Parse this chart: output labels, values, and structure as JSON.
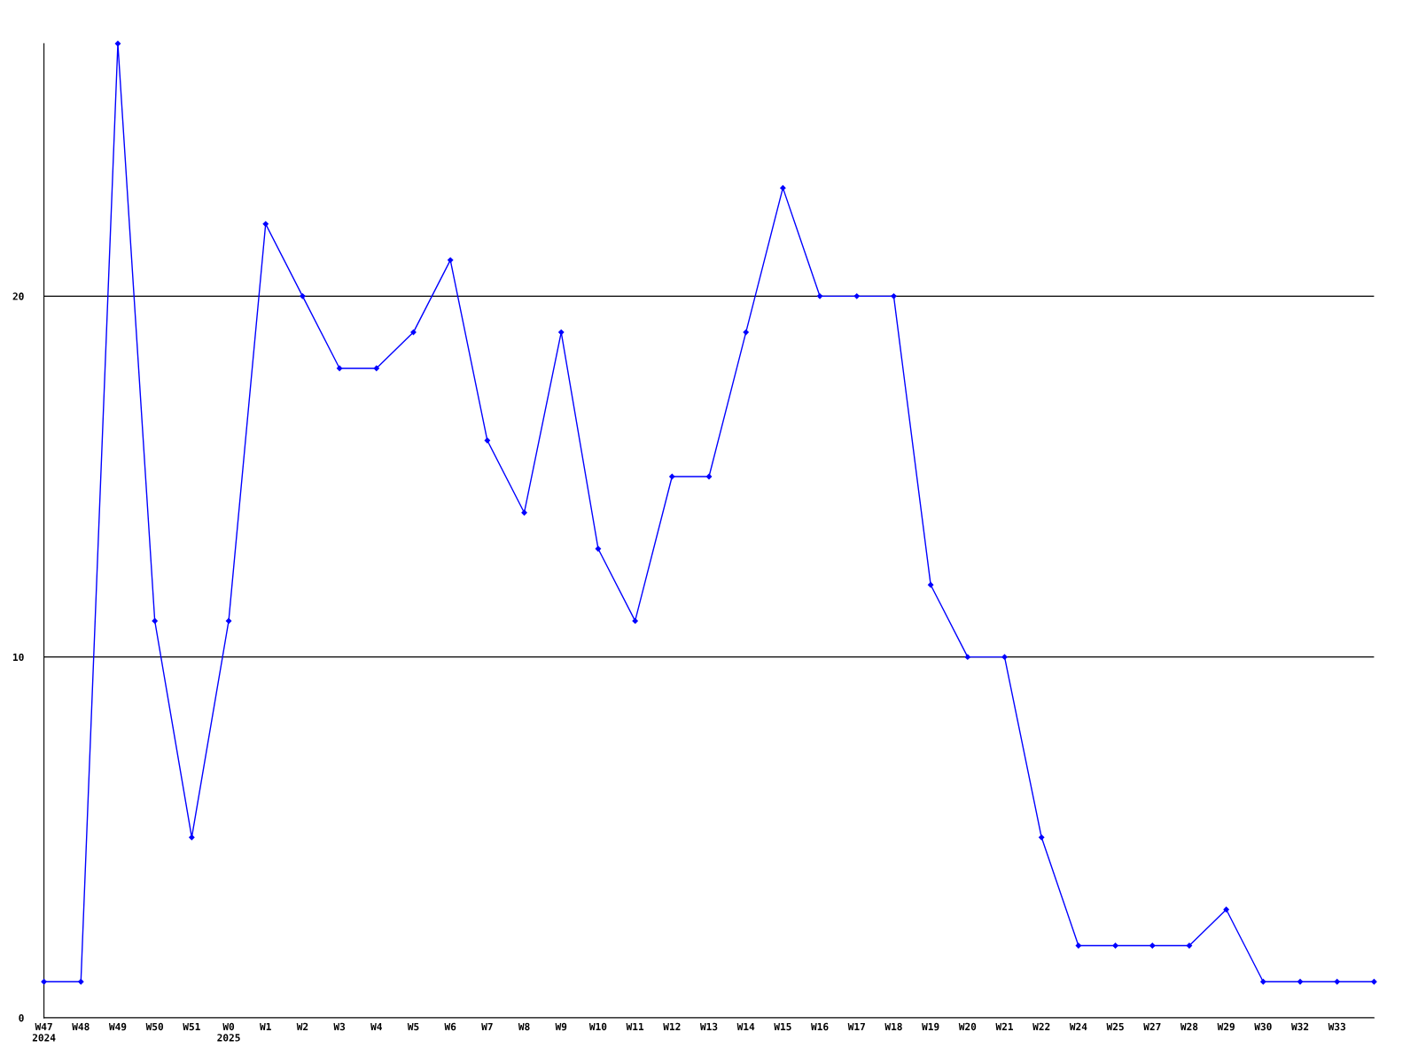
{
  "chart_data": {
    "type": "line",
    "categories": [
      "W47\n2024",
      "W48",
      "W49",
      "W50",
      "W51",
      "W0\n2025",
      "W1",
      "W2",
      "W3",
      "W4",
      "W5",
      "W6",
      "W7",
      "W8",
      "W9",
      "W10",
      "W11",
      "W12",
      "W13",
      "W14",
      "W15",
      "W16",
      "W17",
      "W18",
      "W19",
      "W20",
      "W21",
      "W22",
      "W24",
      "W25",
      "W27",
      "W28",
      "W29",
      "W30",
      "W32",
      "W33",
      null
    ],
    "series": [
      {
        "color": "#0000ff",
        "values": [
          1,
          1,
          27,
          11,
          5,
          11,
          22,
          20,
          18,
          18,
          19,
          21,
          16,
          14,
          19,
          13,
          11,
          15,
          15,
          19,
          23,
          20,
          20,
          20,
          12,
          10,
          10,
          5,
          2,
          2,
          2,
          2,
          3,
          1,
          1,
          1,
          1
        ]
      }
    ],
    "ylim": [
      0,
      27
    ],
    "yticks": [
      0,
      10,
      20
    ],
    "grid": "y",
    "marker": "diamond",
    "line_style": "solid",
    "legend": false
  }
}
